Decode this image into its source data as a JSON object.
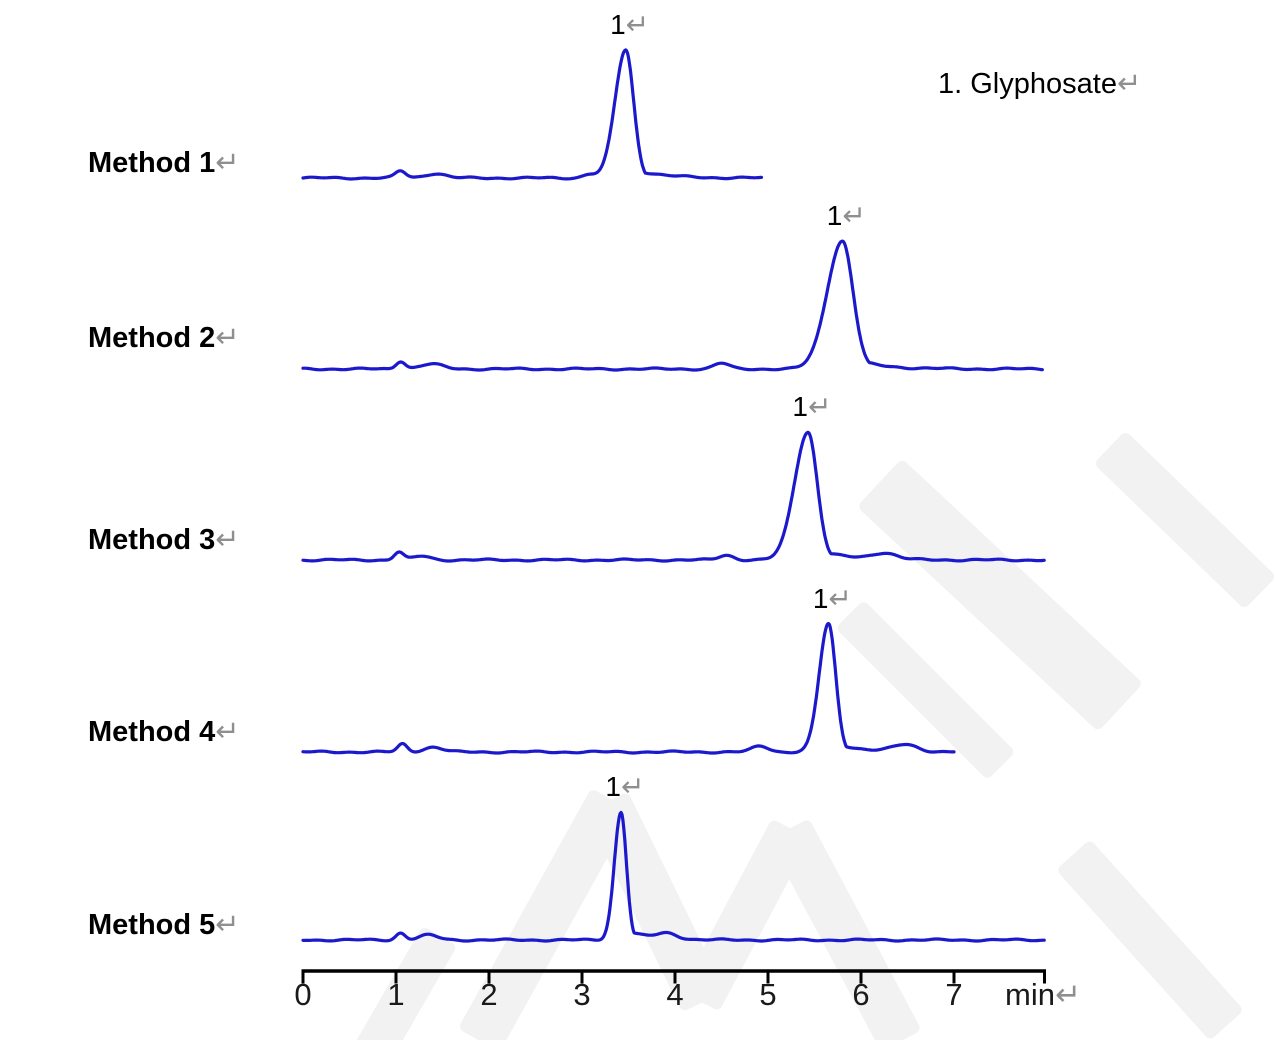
{
  "marks": {
    "return": "↵"
  },
  "legend_text": "1. Glyphosate",
  "chart_data": {
    "type": "line",
    "title": "",
    "xlabel": "min",
    "legend": "1. Glyphosate",
    "peak_identity": {
      "number": "1",
      "compound": "Glyphosate"
    },
    "axis": {
      "unit": "min",
      "tick_labels": [
        "0",
        "1",
        "2",
        "3",
        "4",
        "5",
        "6",
        "7"
      ],
      "tick_values_min": [
        0,
        1,
        2,
        3,
        4,
        5,
        6,
        7
      ],
      "x_range_min": [
        0,
        7.97
      ],
      "grid": false
    },
    "trace_color": "#1b19cb",
    "series": [
      {
        "name": "Method 1",
        "peak_label": "1",
        "peak_time_min": 3.47,
        "peak_height_rel": 1.0,
        "sigma_left_min": 0.115,
        "sigma_right_min": 0.085,
        "tail_frac": 0.1,
        "tail_tau_min": 0.28,
        "trace_start_min": 0,
        "trace_end_min": 4.93,
        "bumps": [
          {
            "time_min": 1.05,
            "height_rel": 0.055,
            "sigma_min": 0.055
          },
          {
            "time_min": 1.42,
            "height_rel": 0.035,
            "sigma_min": 0.11
          },
          {
            "time_min": 3.08,
            "height_rel": 0.03,
            "sigma_min": 0.07
          }
        ]
      },
      {
        "name": "Method 2",
        "peak_label": "1",
        "peak_time_min": 5.8,
        "peak_height_rel": 1.0,
        "sigma_left_min": 0.165,
        "sigma_right_min": 0.115,
        "tail_frac": 0.11,
        "tail_tau_min": 0.3,
        "trace_start_min": 0,
        "trace_end_min": 7.95,
        "bumps": [
          {
            "time_min": 1.05,
            "height_rel": 0.062,
            "sigma_min": 0.05
          },
          {
            "time_min": 1.38,
            "height_rel": 0.038,
            "sigma_min": 0.12
          },
          {
            "time_min": 4.5,
            "height_rel": 0.045,
            "sigma_min": 0.08
          }
        ]
      },
      {
        "name": "Method 3",
        "peak_label": "1",
        "peak_time_min": 5.43,
        "peak_height_rel": 1.0,
        "sigma_left_min": 0.145,
        "sigma_right_min": 0.1,
        "tail_frac": 0.11,
        "tail_tau_min": 0.3,
        "trace_start_min": 0,
        "trace_end_min": 7.97,
        "bumps": [
          {
            "time_min": 1.03,
            "height_rel": 0.062,
            "sigma_min": 0.05
          },
          {
            "time_min": 1.28,
            "height_rel": 0.03,
            "sigma_min": 0.09
          },
          {
            "time_min": 4.55,
            "height_rel": 0.038,
            "sigma_min": 0.08
          },
          {
            "time_min": 6.25,
            "height_rel": 0.05,
            "sigma_min": 0.13
          }
        ]
      },
      {
        "name": "Method 4",
        "peak_label": "1",
        "peak_time_min": 5.65,
        "peak_height_rel": 1.0,
        "sigma_left_min": 0.1,
        "sigma_right_min": 0.078,
        "tail_frac": 0.1,
        "tail_tau_min": 0.26,
        "trace_start_min": 0,
        "trace_end_min": 7.0,
        "bumps": [
          {
            "time_min": 1.07,
            "height_rel": 0.062,
            "sigma_min": 0.05
          },
          {
            "time_min": 1.4,
            "height_rel": 0.038,
            "sigma_min": 0.1
          },
          {
            "time_min": 4.92,
            "height_rel": 0.045,
            "sigma_min": 0.09
          },
          {
            "time_min": 6.48,
            "height_rel": 0.055,
            "sigma_min": 0.13
          }
        ]
      },
      {
        "name": "Method 5",
        "peak_label": "1",
        "peak_time_min": 3.42,
        "peak_height_rel": 1.0,
        "sigma_left_min": 0.072,
        "sigma_right_min": 0.058,
        "tail_frac": 0.1,
        "tail_tau_min": 0.22,
        "trace_start_min": 0,
        "trace_end_min": 7.97,
        "bumps": [
          {
            "time_min": 1.05,
            "height_rel": 0.055,
            "sigma_min": 0.05
          },
          {
            "time_min": 1.35,
            "height_rel": 0.038,
            "sigma_min": 0.1
          },
          {
            "time_min": 3.92,
            "height_rel": 0.045,
            "sigma_min": 0.11
          }
        ]
      }
    ]
  }
}
